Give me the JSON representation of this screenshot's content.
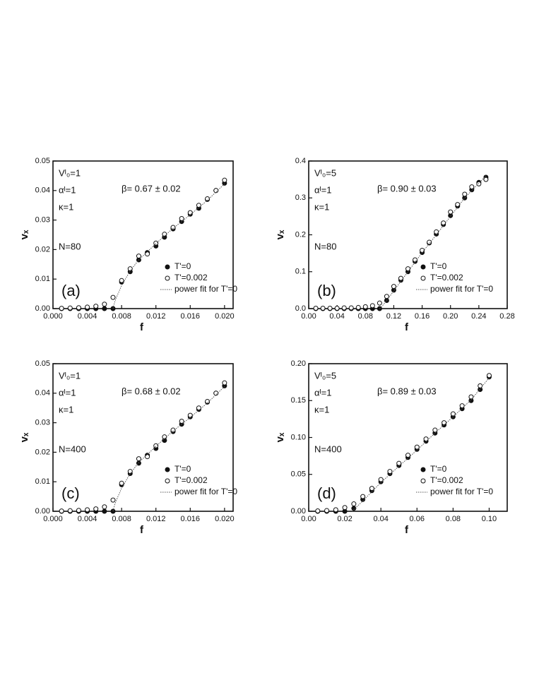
{
  "chart_data": [
    {
      "type": "scatter",
      "panel_label": "(a)",
      "fit_label": "β= 0.67 ± 0.02",
      "parameters": [
        "Vᴵ₀=1",
        "αᴵ=1",
        "κ=1",
        "N=80"
      ],
      "x_label": "f",
      "y_label": "vₓ",
      "xlim": [
        0,
        0.021
      ],
      "ylim": [
        0,
        0.05
      ],
      "xticks": [
        {
          "value": 0,
          "label": "0.000"
        },
        0.004,
        0.008,
        0.012,
        0.016,
        {
          "value": 0.02,
          "label": "0.020"
        }
      ],
      "yticks": [
        {
          "value": 0,
          "label": "0.00"
        },
        0.01,
        0.02,
        0.03,
        0.04,
        0.05
      ],
      "series": [
        {
          "name": "T'=0",
          "color": "#111111",
          "style": "filled-circle",
          "x": [
            0.001,
            0.002,
            0.003,
            0.004,
            0.005,
            0.006,
            0.007,
            0.008,
            0.009,
            0.01,
            0.011,
            0.012,
            0.013,
            0.014,
            0.015,
            0.016,
            0.017,
            0.018,
            0.019,
            0.02
          ],
          "values": [
            0,
            0,
            0,
            0,
            0,
            0,
            0,
            0.009,
            0.0125,
            0.0165,
            0.019,
            0.0212,
            0.0242,
            0.027,
            0.0295,
            0.032,
            0.034,
            0.037,
            0.04,
            0.0425
          ]
        },
        {
          "name": "T'=0.002",
          "color": "#111111",
          "style": "open-circle",
          "x": [
            0.001,
            0.002,
            0.003,
            0.004,
            0.005,
            0.006,
            0.007,
            0.008,
            0.009,
            0.01,
            0.011,
            0.012,
            0.013,
            0.014,
            0.015,
            0.016,
            0.017,
            0.018,
            0.019,
            0.02
          ],
          "values": [
            0.0001,
            0.0002,
            0.0003,
            0.0005,
            0.0008,
            0.0015,
            0.0038,
            0.0095,
            0.0135,
            0.0178,
            0.0185,
            0.0222,
            0.0252,
            0.0275,
            0.0305,
            0.0325,
            0.035,
            0.0372,
            0.04,
            0.0435
          ]
        },
        {
          "name": "power fit for T'=0",
          "color": "#555555",
          "style": "dotted-line",
          "x": [
            0.007,
            0.0072,
            0.0075,
            0.008,
            0.009,
            0.01,
            0.012,
            0.014,
            0.016,
            0.018,
            0.02
          ],
          "values": [
            0,
            0.0023,
            0.0045,
            0.0078,
            0.0128,
            0.0165,
            0.022,
            0.0272,
            0.0318,
            0.0367,
            0.0423
          ]
        }
      ]
    },
    {
      "type": "scatter",
      "panel_label": "(b)",
      "fit_label": "β= 0.90 ± 0.03",
      "parameters": [
        "Vᴵ₀=5",
        "αᴵ=1",
        "κ=1",
        "N=80"
      ],
      "x_label": "f",
      "y_label": "vₓ",
      "xlim": [
        0,
        0.28
      ],
      "ylim": [
        0,
        0.4
      ],
      "xticks": [
        {
          "value": 0,
          "label": "0.00"
        },
        0.04,
        0.08,
        0.12,
        0.16,
        {
          "value": 0.2,
          "label": "0.20"
        },
        0.24,
        0.28
      ],
      "yticks": [
        {
          "value": 0,
          "label": "0.0"
        },
        0.1,
        0.2,
        0.3,
        0.4
      ],
      "series": [
        {
          "name": "T'=0",
          "color": "#111111",
          "style": "filled-circle",
          "x": [
            0.01,
            0.02,
            0.03,
            0.04,
            0.05,
            0.06,
            0.07,
            0.08,
            0.09,
            0.1,
            0.11,
            0.12,
            0.13,
            0.14,
            0.15,
            0.16,
            0.17,
            0.18,
            0.19,
            0.2,
            0.21,
            0.22,
            0.23,
            0.24,
            0.25
          ],
          "values": [
            0,
            0,
            0,
            0,
            0,
            0,
            0,
            0,
            0,
            0,
            0.022,
            0.05,
            0.077,
            0.1,
            0.128,
            0.152,
            0.178,
            0.202,
            0.228,
            0.252,
            0.278,
            0.3,
            0.322,
            0.342,
            0.356
          ]
        },
        {
          "name": "T'=0.002",
          "color": "#111111",
          "style": "open-circle",
          "x": [
            0.01,
            0.02,
            0.03,
            0.04,
            0.05,
            0.06,
            0.07,
            0.08,
            0.09,
            0.1,
            0.11,
            0.12,
            0.13,
            0.14,
            0.15,
            0.16,
            0.17,
            0.18,
            0.19,
            0.2,
            0.21,
            0.22,
            0.23,
            0.24,
            0.25
          ],
          "values": [
            0.001,
            0.001,
            0.001,
            0.001,
            0.002,
            0.002,
            0.003,
            0.005,
            0.008,
            0.015,
            0.033,
            0.06,
            0.082,
            0.108,
            0.132,
            0.158,
            0.18,
            0.208,
            0.232,
            0.262,
            0.282,
            0.31,
            0.33,
            0.338,
            0.35
          ]
        },
        {
          "name": "power fit for T'=0",
          "color": "#555555",
          "style": "dotted-line",
          "x": [
            0.1,
            0.105,
            0.11,
            0.12,
            0.14,
            0.16,
            0.18,
            0.2,
            0.22,
            0.24,
            0.25
          ],
          "values": [
            0,
            0.01,
            0.022,
            0.048,
            0.1,
            0.152,
            0.2,
            0.25,
            0.3,
            0.34,
            0.36
          ]
        }
      ]
    },
    {
      "type": "scatter",
      "panel_label": "(c)",
      "fit_label": "β= 0.68 ± 0.02",
      "parameters": [
        "Vᴵ₀=1",
        "αᴵ=1",
        "κ=1",
        "N=400"
      ],
      "x_label": "f",
      "y_label": "vₓ",
      "xlim": [
        0,
        0.021
      ],
      "ylim": [
        0,
        0.05
      ],
      "xticks": [
        {
          "value": 0,
          "label": "0.000"
        },
        0.004,
        0.008,
        0.012,
        0.016,
        {
          "value": 0.02,
          "label": "0.020"
        }
      ],
      "yticks": [
        {
          "value": 0,
          "label": "0.00"
        },
        0.01,
        0.02,
        0.03,
        0.04,
        0.05
      ],
      "series": [
        {
          "name": "T'=0",
          "color": "#111111",
          "style": "filled-circle",
          "x": [
            0.001,
            0.002,
            0.003,
            0.004,
            0.005,
            0.006,
            0.007,
            0.008,
            0.009,
            0.01,
            0.011,
            0.012,
            0.013,
            0.014,
            0.015,
            0.016,
            0.017,
            0.018,
            0.019,
            0.02
          ],
          "values": [
            0,
            0,
            0,
            0,
            0,
            0,
            0,
            0.009,
            0.0128,
            0.0163,
            0.019,
            0.0213,
            0.024,
            0.027,
            0.0295,
            0.032,
            0.0345,
            0.037,
            0.04,
            0.0425
          ]
        },
        {
          "name": "T'=0.002",
          "color": "#111111",
          "style": "open-circle",
          "x": [
            0.001,
            0.002,
            0.003,
            0.004,
            0.005,
            0.006,
            0.007,
            0.008,
            0.009,
            0.01,
            0.011,
            0.012,
            0.013,
            0.014,
            0.015,
            0.016,
            0.017,
            0.018,
            0.019,
            0.02
          ],
          "values": [
            0.0001,
            0.0002,
            0.0003,
            0.0005,
            0.0008,
            0.0015,
            0.0038,
            0.0095,
            0.0135,
            0.0178,
            0.0185,
            0.0222,
            0.0252,
            0.0275,
            0.0305,
            0.0325,
            0.035,
            0.0372,
            0.04,
            0.0435
          ]
        },
        {
          "name": "power fit for T'=0",
          "color": "#555555",
          "style": "dotted-line",
          "x": [
            0.007,
            0.0072,
            0.0075,
            0.008,
            0.009,
            0.01,
            0.012,
            0.014,
            0.016,
            0.018,
            0.02
          ],
          "values": [
            0,
            0.0023,
            0.0045,
            0.0078,
            0.0128,
            0.0165,
            0.022,
            0.0272,
            0.0318,
            0.0367,
            0.0423
          ]
        }
      ]
    },
    {
      "type": "scatter",
      "panel_label": "(d)",
      "fit_label": "β= 0.89 ± 0.03",
      "parameters": [
        "Vᴵ₀=5",
        "αᴵ=1",
        "κ=1",
        "N=400"
      ],
      "x_label": "f",
      "y_label": "vₓ",
      "xlim": [
        0,
        0.11
      ],
      "ylim": [
        0,
        0.2
      ],
      "xticks": [
        {
          "value": 0,
          "label": "0.00"
        },
        0.02,
        0.04,
        0.06,
        0.08,
        {
          "value": 0.1,
          "label": "0.10"
        }
      ],
      "yticks": [
        {
          "value": 0,
          "label": "0.00"
        },
        0.05,
        {
          "value": 0.1,
          "label": "0.10"
        },
        0.15,
        {
          "value": 0.2,
          "label": "0.20"
        }
      ],
      "series": [
        {
          "name": "T'=0",
          "color": "#111111",
          "style": "filled-circle",
          "x": [
            0.005,
            0.01,
            0.015,
            0.02,
            0.025,
            0.03,
            0.035,
            0.04,
            0.045,
            0.05,
            0.055,
            0.06,
            0.065,
            0.07,
            0.075,
            0.08,
            0.085,
            0.09,
            0.095,
            0.1
          ],
          "values": [
            0,
            0,
            0,
            0,
            0.004,
            0.016,
            0.028,
            0.04,
            0.051,
            0.062,
            0.073,
            0.084,
            0.095,
            0.106,
            0.117,
            0.128,
            0.139,
            0.15,
            0.165,
            0.182
          ]
        },
        {
          "name": "T'=0.002",
          "color": "#111111",
          "style": "open-circle",
          "x": [
            0.005,
            0.01,
            0.015,
            0.02,
            0.025,
            0.03,
            0.035,
            0.04,
            0.045,
            0.05,
            0.055,
            0.06,
            0.065,
            0.07,
            0.075,
            0.08,
            0.085,
            0.09,
            0.095,
            0.1
          ],
          "values": [
            0.0005,
            0.001,
            0.002,
            0.005,
            0.01,
            0.02,
            0.031,
            0.043,
            0.054,
            0.065,
            0.076,
            0.087,
            0.098,
            0.11,
            0.12,
            0.132,
            0.143,
            0.155,
            0.17,
            0.184
          ]
        },
        {
          "name": "power fit for T'=0",
          "color": "#555555",
          "style": "dotted-line",
          "x": [
            0.024,
            0.03,
            0.04,
            0.05,
            0.06,
            0.07,
            0.08,
            0.09,
            0.1
          ],
          "values": [
            0,
            0.014,
            0.039,
            0.061,
            0.083,
            0.106,
            0.128,
            0.151,
            0.181
          ]
        }
      ]
    }
  ]
}
